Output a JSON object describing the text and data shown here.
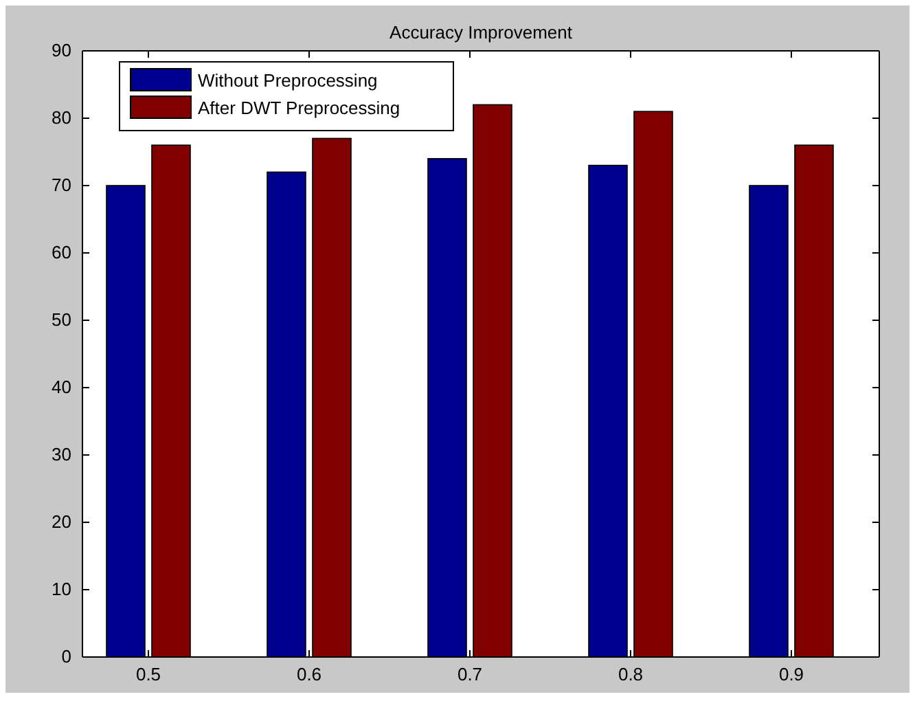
{
  "chart_data": {
    "type": "bar",
    "title": "Accuracy Improvement",
    "categories": [
      "0.5",
      "0.6",
      "0.7",
      "0.8",
      "0.9"
    ],
    "series": [
      {
        "name": "Without Preprocessing",
        "color": "#00008f",
        "values": [
          70,
          72,
          74,
          73,
          70
        ]
      },
      {
        "name": "After DWT Preprocessing",
        "color": "#800000",
        "values": [
          76,
          77,
          82,
          81,
          76
        ]
      }
    ],
    "ylim": [
      0,
      90
    ],
    "yticks": [
      0,
      10,
      20,
      30,
      40,
      50,
      60,
      70,
      80,
      90
    ],
    "grid": false,
    "legend": "top left"
  }
}
